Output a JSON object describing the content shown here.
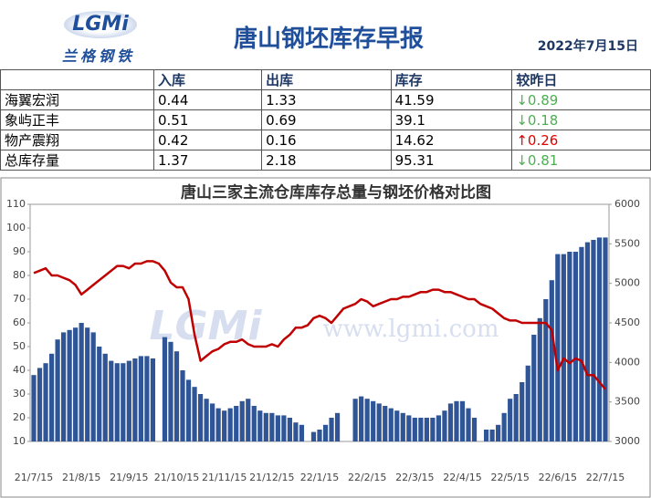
{
  "header": {
    "logo": "LGMi",
    "brand": "兰格钢铁",
    "title": "唐山钢坯库存早报",
    "date": "2022年7月15日"
  },
  "table": {
    "header": [
      "入库",
      "出库",
      "库存",
      "较昨日"
    ],
    "rows": [
      [
        "海翼宏润",
        0.44,
        1.33,
        41.59,
        "↓0.89"
      ],
      [
        "象屿正丰",
        0.51,
        0.69,
        39.1,
        "↓0.18"
      ],
      [
        "物产震翔",
        0.42,
        0.16,
        14.62,
        "↑0.26"
      ],
      [
        "总库存量",
        1.37,
        2.18,
        95.31,
        "↓0.81"
      ]
    ]
  },
  "chart_data": {
    "type": "bar",
    "title": "唐山三家主流仓库库存总量与钢坯价格对比图",
    "watermark": [
      "LGMi",
      "www.lgmi.com"
    ],
    "categories": [
      "21/7/15",
      null,
      null,
      null,
      null,
      null,
      null,
      null,
      "21/8/15",
      null,
      null,
      null,
      null,
      null,
      null,
      null,
      "21/9/15",
      null,
      null,
      null,
      null,
      null,
      null,
      null,
      "21/10/15",
      null,
      null,
      null,
      null,
      null,
      null,
      null,
      "21/11/15",
      null,
      null,
      null,
      null,
      null,
      null,
      null,
      "21/12/15",
      null,
      null,
      null,
      null,
      null,
      null,
      null,
      "22/1/15",
      null,
      null,
      null,
      null,
      null,
      null,
      null,
      "22/2/15",
      null,
      null,
      null,
      null,
      null,
      null,
      null,
      "22/3/15",
      null,
      null,
      null,
      null,
      null,
      null,
      null,
      "22/4/15",
      null,
      null,
      null,
      null,
      null,
      null,
      null,
      "22/5/15",
      null,
      null,
      null,
      null,
      null,
      null,
      null,
      "22/6/15",
      null,
      null,
      null,
      null,
      null,
      null,
      null,
      "22/7/15"
    ],
    "series": [
      {
        "type": "bar",
        "color": "#2f5597",
        "values": [
          38,
          41,
          43,
          47,
          53,
          56,
          57,
          58,
          60,
          58,
          56,
          50,
          47,
          44,
          43,
          43,
          44,
          45,
          46,
          46,
          45,
          null,
          54,
          52,
          48,
          40,
          36,
          33,
          30,
          28,
          26,
          24,
          23,
          24,
          25,
          27,
          28,
          25,
          23,
          22,
          22,
          21,
          21,
          20,
          18,
          17,
          null,
          14,
          15,
          17,
          20,
          22,
          null,
          null,
          28,
          29,
          28,
          27,
          26,
          25,
          24,
          23,
          22,
          21,
          20,
          20,
          20,
          20,
          21,
          23,
          26,
          27,
          27,
          24,
          20,
          null,
          15,
          15,
          17,
          22,
          28,
          30,
          35,
          42,
          55,
          62,
          70,
          78,
          89,
          89,
          90,
          90,
          92,
          94,
          95,
          96,
          96
        ]
      },
      {
        "type": "line",
        "axis": "y2",
        "color": "#c00000",
        "values": [
          5130,
          5160,
          5190,
          5100,
          5100,
          5070,
          5040,
          4980,
          4860,
          4920,
          4980,
          5040,
          5100,
          5160,
          5220,
          5220,
          5190,
          5250,
          5250,
          5280,
          5280,
          5250,
          5160,
          5010,
          4950,
          4950,
          4800,
          4350,
          4020,
          4080,
          4140,
          4170,
          4230,
          4260,
          4260,
          4290,
          4230,
          4200,
          4200,
          4200,
          4230,
          4200,
          4290,
          4350,
          4440,
          4440,
          4470,
          4560,
          4590,
          4560,
          4500,
          4590,
          4680,
          4710,
          4740,
          4800,
          4770,
          4710,
          4740,
          4770,
          4800,
          4800,
          4830,
          4830,
          4860,
          4890,
          4890,
          4920,
          4920,
          4890,
          4890,
          4860,
          4830,
          4800,
          4800,
          4740,
          4710,
          4680,
          4620,
          4560,
          4530,
          4530,
          4500,
          4500,
          4500,
          4500,
          4500,
          4410,
          3900,
          4050,
          3990,
          4050,
          4020,
          3840,
          3840,
          3750,
          3660
        ]
      }
    ],
    "ylim": [
      10,
      110
    ],
    "yticks": [
      10,
      20,
      30,
      40,
      50,
      60,
      70,
      80,
      90,
      100,
      110
    ],
    "y2lim": [
      3000,
      6000
    ],
    "y2ticks": [
      3000,
      3500,
      4000,
      4500,
      5000,
      5500,
      6000
    ]
  }
}
